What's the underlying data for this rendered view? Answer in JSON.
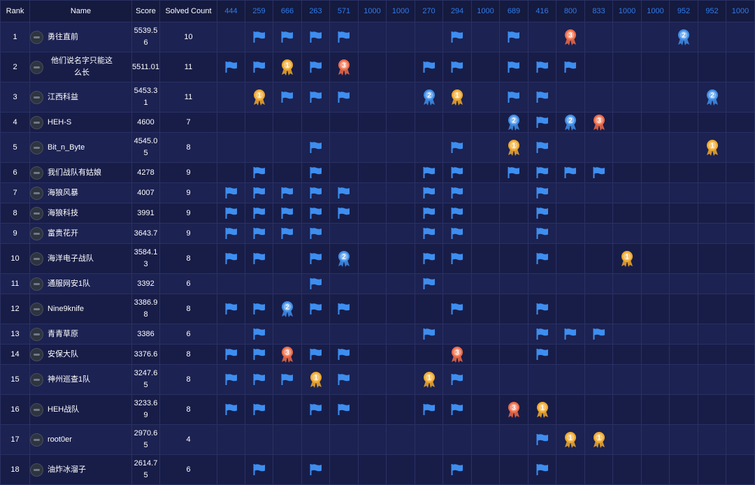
{
  "header": {
    "rank": "Rank",
    "name": "Name",
    "score": "Score",
    "solved": "Solved Count",
    "challenges": [
      "444",
      "259",
      "666",
      "263",
      "571",
      "1000",
      "1000",
      "270",
      "294",
      "1000",
      "689",
      "416",
      "800",
      "833",
      "1000",
      "1000",
      "952",
      "952",
      "1000"
    ]
  },
  "colors": {
    "background": "#151a3f",
    "row_a": "#1c2251",
    "row_b": "#181d48",
    "grid": "#2a3163",
    "accent": "#2f7be8",
    "flag": "#3d8ef0",
    "gold": "#f0a92c",
    "silver_blue": "#3f8ee8",
    "bronze": "#ef6a46"
  },
  "legend_icons": {
    "f": "flag-icon",
    "1": "gold-medal-icon",
    "2": "silver-medal-icon",
    "3": "bronze-medal-icon"
  },
  "teams": [
    {
      "rank": "1",
      "name": "勇往直前",
      "score": "5539.56",
      "solved": "10",
      "marks": [
        "",
        "f",
        "f",
        "f",
        "f",
        "",
        "",
        "",
        "f",
        "",
        "f",
        "",
        "3",
        "",
        "",
        "",
        "2",
        "",
        ""
      ]
    },
    {
      "rank": "2",
      "name": "他们说名字只能这么长",
      "score": "5511.01",
      "solved": "11",
      "marks": [
        "f",
        "f",
        "1",
        "f",
        "3",
        "",
        "",
        "f",
        "f",
        "",
        "f",
        "f",
        "f",
        "",
        "",
        "",
        "",
        "",
        ""
      ]
    },
    {
      "rank": "3",
      "name": "江西科益",
      "score": "5453.31",
      "solved": "11",
      "marks": [
        "",
        "1",
        "f",
        "f",
        "f",
        "",
        "",
        "2",
        "1",
        "",
        "f",
        "f",
        "",
        "",
        "",
        "",
        "",
        "2",
        ""
      ]
    },
    {
      "rank": "4",
      "name": "HEH-S",
      "score": "4600",
      "solved": "7",
      "marks": [
        "",
        "",
        "",
        "",
        "",
        "",
        "",
        "",
        "",
        "",
        "2",
        "f",
        "2",
        "3",
        "",
        "",
        "",
        "",
        ""
      ]
    },
    {
      "rank": "5",
      "name": "Bit_n_Byte",
      "score": "4545.05",
      "solved": "8",
      "marks": [
        "",
        "",
        "",
        "f",
        "",
        "",
        "",
        "",
        "f",
        "",
        "1",
        "f",
        "",
        "",
        "",
        "",
        "",
        "1",
        ""
      ]
    },
    {
      "rank": "6",
      "name": "我们战队有姑娘",
      "score": "4278",
      "solved": "9",
      "marks": [
        "",
        "f",
        "",
        "f",
        "",
        "",
        "",
        "f",
        "f",
        "",
        "f",
        "f",
        "f",
        "f",
        "",
        "",
        "",
        "",
        ""
      ]
    },
    {
      "rank": "7",
      "name": "海狼风暴",
      "score": "4007",
      "solved": "9",
      "marks": [
        "f",
        "f",
        "f",
        "f",
        "f",
        "",
        "",
        "f",
        "f",
        "",
        "",
        "f",
        "",
        "",
        "",
        "",
        "",
        "",
        ""
      ]
    },
    {
      "rank": "8",
      "name": "海狼科技",
      "score": "3991",
      "solved": "9",
      "marks": [
        "f",
        "f",
        "f",
        "f",
        "f",
        "",
        "",
        "f",
        "f",
        "",
        "",
        "f",
        "",
        "",
        "",
        "",
        "",
        "",
        ""
      ]
    },
    {
      "rank": "9",
      "name": "富贵花开",
      "score": "3643.7",
      "solved": "9",
      "marks": [
        "f",
        "f",
        "f",
        "f",
        "",
        "",
        "",
        "f",
        "f",
        "",
        "",
        "f",
        "",
        "",
        "",
        "",
        "",
        "",
        ""
      ]
    },
    {
      "rank": "10",
      "name": "海洋电子战队",
      "score": "3584.13",
      "solved": "8",
      "marks": [
        "f",
        "f",
        "",
        "f",
        "2",
        "",
        "",
        "f",
        "f",
        "",
        "",
        "f",
        "",
        "",
        "1",
        "",
        "",
        "",
        ""
      ]
    },
    {
      "rank": "11",
      "name": "通服网安1队",
      "score": "3392",
      "solved": "6",
      "marks": [
        "",
        "",
        "",
        "f",
        "",
        "",
        "",
        "f",
        "",
        "",
        "",
        "",
        "",
        "",
        "",
        "",
        "",
        "",
        ""
      ]
    },
    {
      "rank": "12",
      "name": "Nine9knife",
      "score": "3386.98",
      "solved": "8",
      "marks": [
        "f",
        "f",
        "2",
        "f",
        "f",
        "",
        "",
        "",
        "f",
        "",
        "",
        "f",
        "",
        "",
        "",
        "",
        "",
        "",
        ""
      ]
    },
    {
      "rank": "13",
      "name": "青青草原",
      "score": "3386",
      "solved": "6",
      "marks": [
        "",
        "f",
        "",
        "",
        "",
        "",
        "",
        "f",
        "",
        "",
        "",
        "f",
        "f",
        "f",
        "",
        "",
        "",
        "",
        ""
      ]
    },
    {
      "rank": "14",
      "name": "安保大队",
      "score": "3376.6",
      "solved": "8",
      "marks": [
        "f",
        "f",
        "3",
        "f",
        "f",
        "",
        "",
        "",
        "3",
        "",
        "",
        "f",
        "",
        "",
        "",
        "",
        "",
        "",
        ""
      ]
    },
    {
      "rank": "15",
      "name": "神州巡查1队",
      "score": "3247.65",
      "solved": "8",
      "marks": [
        "f",
        "f",
        "f",
        "1",
        "f",
        "",
        "",
        "1",
        "f",
        "",
        "",
        "",
        "",
        "",
        "",
        "",
        "",
        "",
        ""
      ]
    },
    {
      "rank": "16",
      "name": "HEH战队",
      "score": "3233.69",
      "solved": "8",
      "marks": [
        "f",
        "f",
        "",
        "f",
        "f",
        "",
        "",
        "f",
        "f",
        "",
        "3",
        "1",
        "",
        "",
        "",
        "",
        "",
        "",
        ""
      ]
    },
    {
      "rank": "17",
      "name": "root0er",
      "score": "2970.65",
      "solved": "4",
      "marks": [
        "",
        "",
        "",
        "",
        "",
        "",
        "",
        "",
        "",
        "",
        "",
        "f",
        "1",
        "1",
        "",
        "",
        "",
        "",
        ""
      ]
    },
    {
      "rank": "18",
      "name": "油炸冰溜子",
      "score": "2614.75",
      "solved": "6",
      "marks": [
        "",
        "f",
        "",
        "f",
        "",
        "",
        "",
        "",
        "f",
        "",
        "",
        "f",
        "",
        "",
        "",
        "",
        "",
        "",
        ""
      ]
    }
  ]
}
